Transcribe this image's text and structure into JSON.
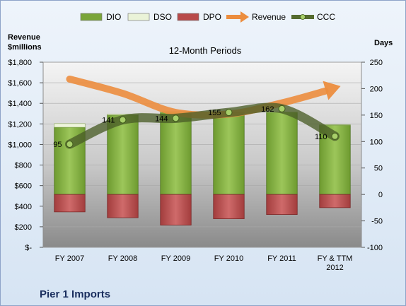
{
  "chart_data": {
    "type": "bar",
    "title": "12-Month Periods",
    "company": "Pier 1 Imports",
    "y_left_title_line1": "Revenue",
    "y_left_title_line2": "$millions",
    "y_right_title": "Days",
    "categories": [
      [
        "FY 2007"
      ],
      [
        "FY 2008"
      ],
      [
        "FY 2009"
      ],
      [
        "FY 2010"
      ],
      [
        "FY 2011"
      ],
      [
        "FY & TTM",
        "2012"
      ]
    ],
    "left_axis": {
      "min": 0,
      "max": 1800,
      "step": 200,
      "ticks": [
        "$-",
        "$200",
        "$400",
        "$600",
        "$800",
        "$1,000",
        "$1,200",
        "$1,400",
        "$1,600",
        "$1,800"
      ]
    },
    "right_axis": {
      "min": -100,
      "max": 250,
      "step": 50,
      "ticks": [
        "-100",
        "-50",
        "0",
        "50",
        "100",
        "150",
        "200",
        "250"
      ]
    },
    "legend": [
      {
        "name": "DIO",
        "kind": "bar",
        "color": "#7aa53a"
      },
      {
        "name": "DSO",
        "kind": "bar",
        "color": "#eaf3d8"
      },
      {
        "name": "DPO",
        "kind": "bar",
        "color": "#b84a4a"
      },
      {
        "name": "Revenue",
        "kind": "arrow",
        "color": "#ec8d3e"
      },
      {
        "name": "CCC",
        "kind": "line",
        "color": "#556b2f"
      }
    ],
    "series": [
      {
        "name": "DIO",
        "axis": "right",
        "values": [
          127,
          150,
          155,
          155,
          155,
          131
        ]
      },
      {
        "name": "DSO",
        "axis": "right",
        "values": [
          7,
          2,
          2,
          1,
          1,
          1
        ]
      },
      {
        "name": "DPO",
        "axis": "right",
        "values": [
          -33,
          -44,
          -58,
          -46,
          -38,
          -25
        ]
      },
      {
        "name": "CCC",
        "axis": "right",
        "values": [
          95,
          141,
          144,
          155,
          162,
          110
        ]
      },
      {
        "name": "Revenue",
        "axis": "right",
        "values": [
          218,
          191,
          155,
          152,
          173,
          202
        ]
      }
    ],
    "ccc_labels": [
      "95",
      "141",
      "144",
      "155",
      "162",
      "110"
    ]
  }
}
